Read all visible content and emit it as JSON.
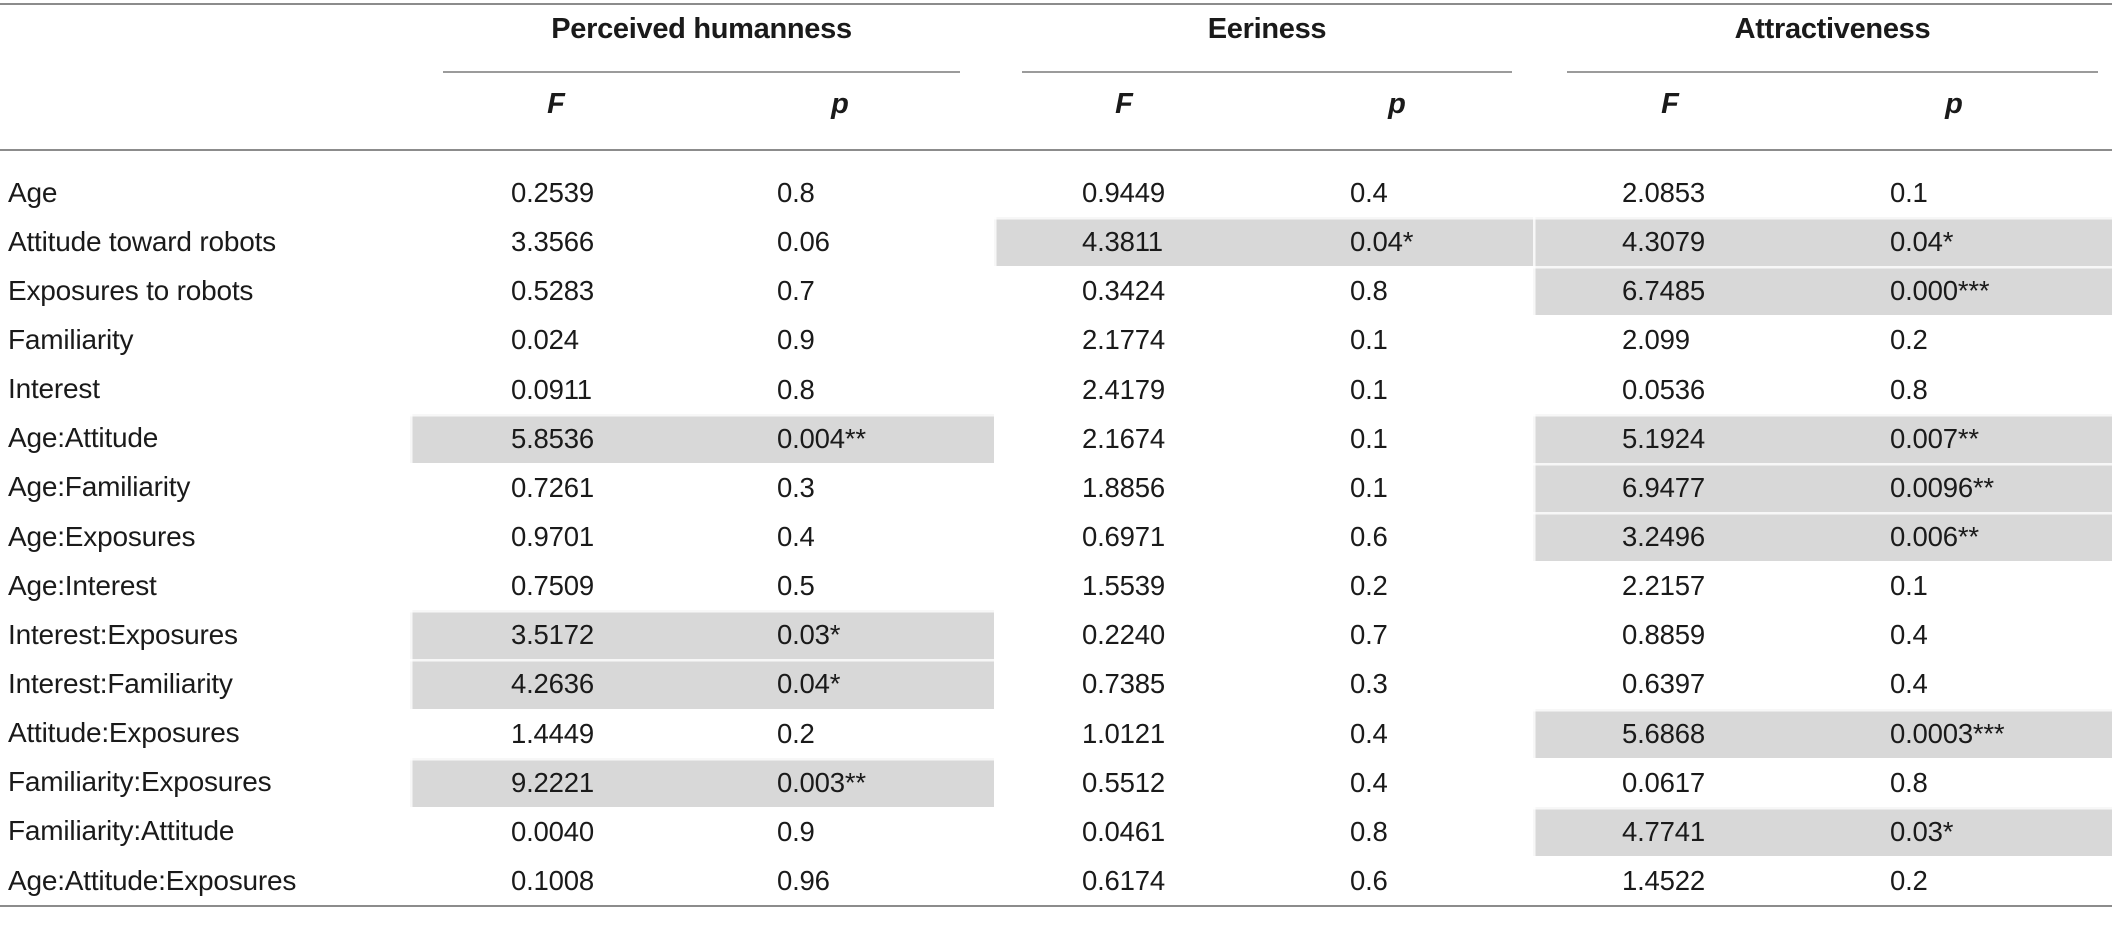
{
  "page": {
    "background": "#ffffff",
    "text_color": "#1a1a1a",
    "rule_color": "#8c8c8c",
    "highlight_color": "#d8d8d8"
  },
  "table": {
    "groups": [
      {
        "label": "Perceived humanness"
      },
      {
        "label": "Eeriness"
      },
      {
        "label": "Attractiveness"
      }
    ],
    "col_headers": {
      "f": "F",
      "p": "p"
    },
    "rows": [
      {
        "label": "Age",
        "perceived_humanness": {
          "f": "0.2539",
          "p": "0.8",
          "hl": false
        },
        "eeriness": {
          "f": "0.9449",
          "p": "0.4",
          "hl": false
        },
        "attractiveness": {
          "f": "2.0853",
          "p": "0.1",
          "hl": false
        }
      },
      {
        "label": "Attitude toward robots",
        "perceived_humanness": {
          "f": "3.3566",
          "p": "0.06",
          "hl": false
        },
        "eeriness": {
          "f": "4.3811",
          "p": "0.04*",
          "hl": true
        },
        "attractiveness": {
          "f": "4.3079",
          "p": "0.04*",
          "hl": true
        }
      },
      {
        "label": "Exposures to robots",
        "perceived_humanness": {
          "f": "0.5283",
          "p": "0.7",
          "hl": false
        },
        "eeriness": {
          "f": "0.3424",
          "p": "0.8",
          "hl": false
        },
        "attractiveness": {
          "f": "6.7485",
          "p": "0.000***",
          "hl": true
        }
      },
      {
        "label": "Familiarity",
        "perceived_humanness": {
          "f": "0.024",
          "p": "0.9",
          "hl": false
        },
        "eeriness": {
          "f": "2.1774",
          "p": "0.1",
          "hl": false
        },
        "attractiveness": {
          "f": "2.099",
          "p": "0.2",
          "hl": false
        }
      },
      {
        "label": "Interest",
        "perceived_humanness": {
          "f": "0.0911",
          "p": "0.8",
          "hl": false
        },
        "eeriness": {
          "f": "2.4179",
          "p": "0.1",
          "hl": false
        },
        "attractiveness": {
          "f": "0.0536",
          "p": "0.8",
          "hl": false
        }
      },
      {
        "label": "Age:Attitude",
        "perceived_humanness": {
          "f": "5.8536",
          "p": "0.004**",
          "hl": true
        },
        "eeriness": {
          "f": "2.1674",
          "p": "0.1",
          "hl": false
        },
        "attractiveness": {
          "f": "5.1924",
          "p": "0.007**",
          "hl": true
        }
      },
      {
        "label": "Age:Familiarity",
        "perceived_humanness": {
          "f": "0.7261",
          "p": "0.3",
          "hl": false
        },
        "eeriness": {
          "f": "1.8856",
          "p": "0.1",
          "hl": false
        },
        "attractiveness": {
          "f": "6.9477",
          "p": "0.0096**",
          "hl": true
        }
      },
      {
        "label": "Age:Exposures",
        "perceived_humanness": {
          "f": "0.9701",
          "p": "0.4",
          "hl": false
        },
        "eeriness": {
          "f": "0.6971",
          "p": "0.6",
          "hl": false
        },
        "attractiveness": {
          "f": "3.2496",
          "p": "0.006**",
          "hl": true
        }
      },
      {
        "label": "Age:Interest",
        "perceived_humanness": {
          "f": "0.7509",
          "p": "0.5",
          "hl": false
        },
        "eeriness": {
          "f": "1.5539",
          "p": "0.2",
          "hl": false
        },
        "attractiveness": {
          "f": "2.2157",
          "p": "0.1",
          "hl": false
        }
      },
      {
        "label": "Interest:Exposures",
        "perceived_humanness": {
          "f": "3.5172",
          "p": "0.03*",
          "hl": true
        },
        "eeriness": {
          "f": "0.2240",
          "p": "0.7",
          "hl": false
        },
        "attractiveness": {
          "f": "0.8859",
          "p": "0.4",
          "hl": false
        }
      },
      {
        "label": "Interest:Familiarity",
        "perceived_humanness": {
          "f": "4.2636",
          "p": "0.04*",
          "hl": true
        },
        "eeriness": {
          "f": "0.7385",
          "p": "0.3",
          "hl": false
        },
        "attractiveness": {
          "f": "0.6397",
          "p": "0.4",
          "hl": false
        }
      },
      {
        "label": "Attitude:Exposures",
        "perceived_humanness": {
          "f": "1.4449",
          "p": "0.2",
          "hl": false
        },
        "eeriness": {
          "f": "1.0121",
          "p": "0.4",
          "hl": false
        },
        "attractiveness": {
          "f": "5.6868",
          "p": "0.0003***",
          "hl": true
        }
      },
      {
        "label": "Familiarity:Exposures",
        "perceived_humanness": {
          "f": "9.2221",
          "p": "0.003**",
          "hl": true
        },
        "eeriness": {
          "f": "0.5512",
          "p": "0.4",
          "hl": false
        },
        "attractiveness": {
          "f": "0.0617",
          "p": "0.8",
          "hl": false
        }
      },
      {
        "label": "Familiarity:Attitude",
        "perceived_humanness": {
          "f": "0.0040",
          "p": "0.9",
          "hl": false
        },
        "eeriness": {
          "f": "0.0461",
          "p": "0.8",
          "hl": false
        },
        "attractiveness": {
          "f": "4.7741",
          "p": "0.03*",
          "hl": true
        }
      },
      {
        "label": "Age:Attitude:Exposures",
        "perceived_humanness": {
          "f": "0.1008",
          "p": "0.96",
          "hl": false
        },
        "eeriness": {
          "f": "0.6174",
          "p": "0.6",
          "hl": false
        },
        "attractiveness": {
          "f": "1.4522",
          "p": "0.2",
          "hl": false
        }
      }
    ]
  }
}
